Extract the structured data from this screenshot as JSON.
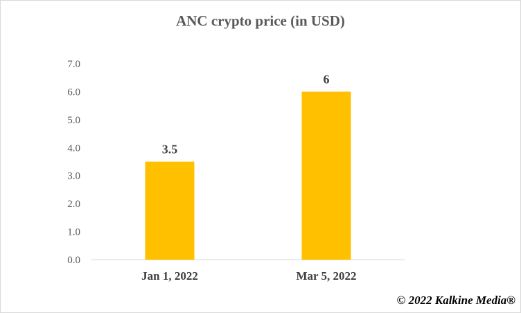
{
  "chart_data": {
    "type": "bar",
    "title": "ANC crypto price (in USD)",
    "categories": [
      "Jan 1, 2022",
      "Mar 5, 2022"
    ],
    "values": [
      3.5,
      6
    ],
    "value_labels": [
      "3.5",
      "6"
    ],
    "y_ticks": [
      "0.0",
      "1.0",
      "2.0",
      "3.0",
      "4.0",
      "5.0",
      "6.0",
      "7.0"
    ],
    "ylim": [
      0,
      7
    ],
    "xlabel": "",
    "ylabel": "",
    "grid": false,
    "legend": "none",
    "bar_color": "#FFC000"
  },
  "credit": "© 2022 Kalkine Media®"
}
